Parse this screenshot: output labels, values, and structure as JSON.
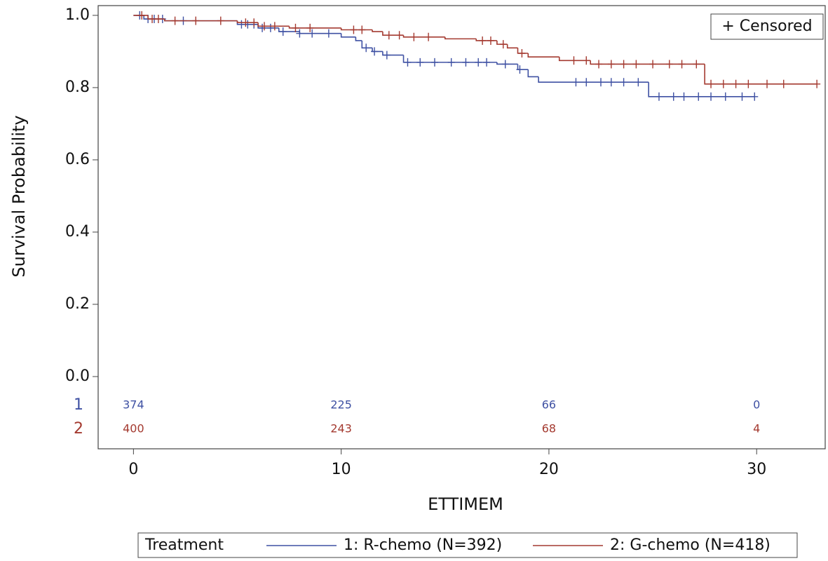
{
  "chart_data": {
    "type": "kaplan-meier",
    "xlabel": "ETTIMEM",
    "ylabel": "Survival Probability",
    "xlim": [
      -1.7,
      33.3
    ],
    "ylim": [
      -0.2,
      1.027
    ],
    "xticks": [
      0,
      10,
      20,
      30
    ],
    "yticks": [
      {
        "value": 0,
        "label": "0.0"
      },
      0.2,
      0.4,
      0.6,
      0.8,
      {
        "value": 1,
        "label": "1.0"
      }
    ],
    "censored_label": "+ Censored",
    "legend_title": "Treatment",
    "series": [
      {
        "name": "1: R-chemo (N=392)",
        "color": "#3f51a3",
        "times": [
          0,
          0.5,
          1.5,
          5,
          6,
          7,
          8,
          10,
          10.7,
          11,
          11.5,
          12,
          13,
          17.5,
          18.5,
          19,
          19.5,
          24.8
        ],
        "survival": [
          1,
          0.99,
          0.985,
          0.975,
          0.965,
          0.955,
          0.95,
          0.94,
          0.93,
          0.91,
          0.9,
          0.89,
          0.87,
          0.865,
          0.85,
          0.83,
          0.815,
          0.775
        ],
        "censored_x": [
          0.3,
          0.7,
          1.0,
          1.4,
          2.4,
          5.2,
          5.5,
          5.8,
          6.2,
          6.6,
          7.2,
          8.0,
          8.6,
          9.4,
          11.2,
          11.6,
          12.2,
          13.2,
          13.8,
          14.5,
          15.3,
          16.0,
          16.6,
          17.0,
          17.9,
          18.6,
          21.3,
          21.8,
          22.5,
          23.0,
          23.6,
          24.3,
          25.3,
          26.0,
          26.5,
          27.2,
          27.8,
          28.5,
          29.3,
          29.9
        ],
        "censored_y": [
          1,
          0.99,
          0.99,
          0.99,
          0.985,
          0.975,
          0.975,
          0.975,
          0.965,
          0.965,
          0.955,
          0.95,
          0.95,
          0.95,
          0.91,
          0.9,
          0.89,
          0.87,
          0.87,
          0.87,
          0.87,
          0.87,
          0.87,
          0.87,
          0.865,
          0.85,
          0.815,
          0.815,
          0.815,
          0.815,
          0.815,
          0.815,
          0.775,
          0.775,
          0.775,
          0.775,
          0.775,
          0.775,
          0.775,
          0.775
        ],
        "at_risk_label": "1",
        "at_risk": [
          374,
          225,
          66,
          0
        ]
      },
      {
        "name": "2: G-chemo (N=418)",
        "color": "#a43a30",
        "times": [
          0,
          0.7,
          1.5,
          5,
          6,
          7.5,
          10,
          11.5,
          12,
          13,
          15,
          16.5,
          17.5,
          18,
          18.5,
          19,
          20.5,
          22,
          27.5
        ],
        "survival": [
          1,
          0.99,
          0.985,
          0.98,
          0.97,
          0.965,
          0.96,
          0.955,
          0.945,
          0.94,
          0.935,
          0.93,
          0.92,
          0.91,
          0.895,
          0.885,
          0.875,
          0.865,
          0.81
        ],
        "censored_x": [
          0.4,
          0.9,
          1.2,
          2.0,
          3.0,
          4.2,
          5.4,
          5.8,
          6.3,
          6.8,
          7.8,
          8.5,
          10.6,
          11.0,
          12.3,
          12.8,
          13.5,
          14.2,
          16.8,
          17.2,
          17.8,
          18.7,
          21.2,
          21.8,
          22.4,
          23.0,
          23.6,
          24.2,
          25.0,
          25.8,
          26.4,
          27.1,
          27.8,
          28.4,
          29.0,
          29.6,
          30.5,
          31.3,
          32.9
        ],
        "censored_y": [
          1,
          0.99,
          0.99,
          0.985,
          0.985,
          0.985,
          0.98,
          0.98,
          0.97,
          0.97,
          0.965,
          0.965,
          0.96,
          0.96,
          0.945,
          0.945,
          0.94,
          0.94,
          0.93,
          0.93,
          0.92,
          0.895,
          0.875,
          0.875,
          0.865,
          0.865,
          0.865,
          0.865,
          0.865,
          0.865,
          0.865,
          0.865,
          0.81,
          0.81,
          0.81,
          0.81,
          0.81,
          0.81,
          0.81
        ],
        "at_risk_label": "2",
        "at_risk": [
          400,
          243,
          68,
          4
        ]
      }
    ]
  }
}
